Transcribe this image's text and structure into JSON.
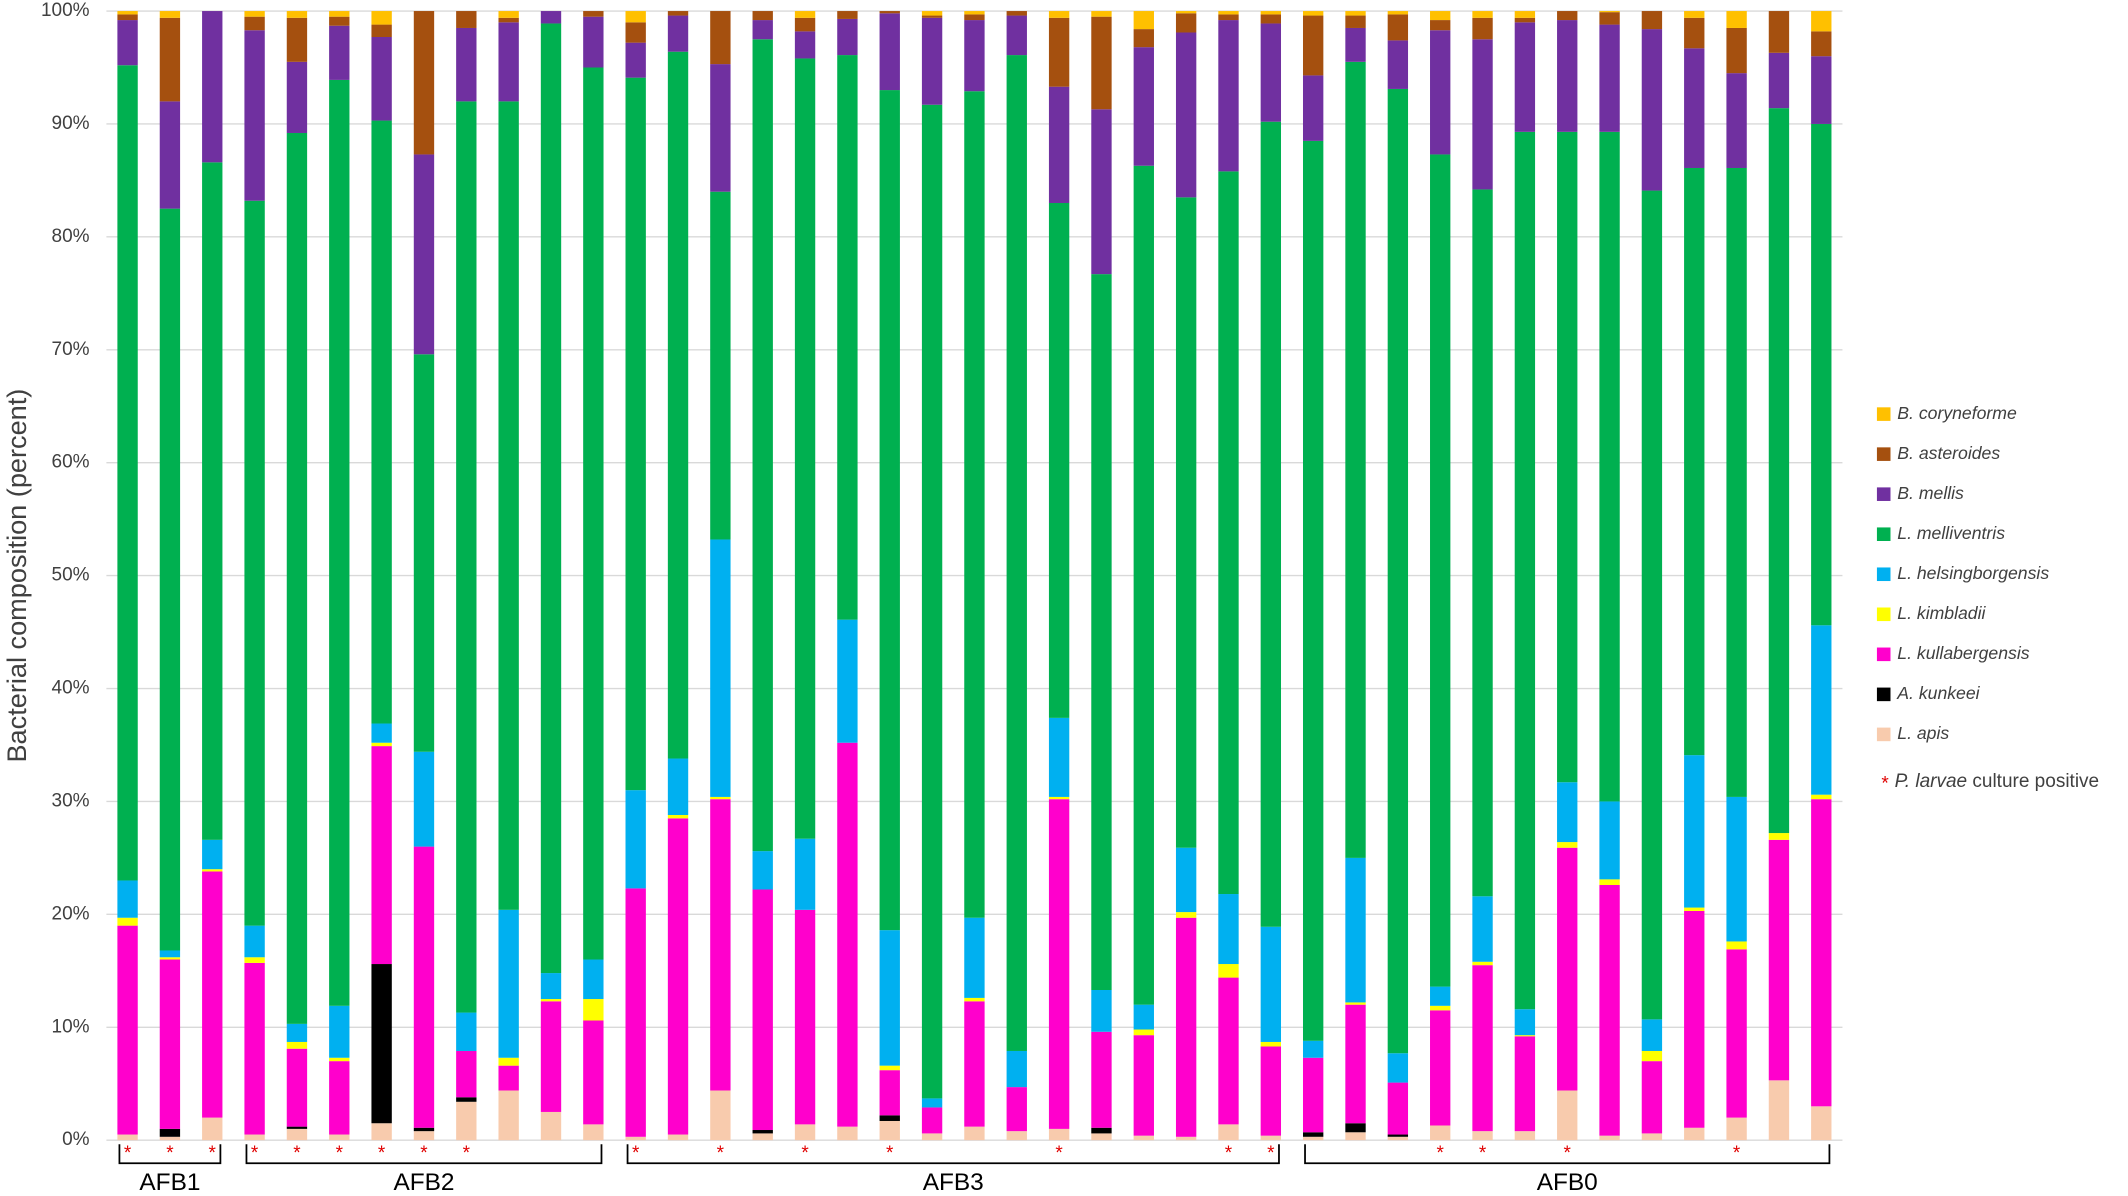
{
  "chart_data": {
    "type": "stacked_bar",
    "y_label": "Bacterial composition (percent)",
    "ylim": [
      0,
      100
    ],
    "yticks": [
      {
        "value": 0,
        "label": "0%"
      },
      {
        "value": 10,
        "label": "10%"
      },
      {
        "value": 20,
        "label": "20%"
      },
      {
        "value": 30,
        "label": "30%"
      },
      {
        "value": 40,
        "label": "40%"
      },
      {
        "value": 50,
        "label": "50%"
      },
      {
        "value": 60,
        "label": "60%"
      },
      {
        "value": 70,
        "label": "70%"
      },
      {
        "value": 80,
        "label": "80%"
      },
      {
        "value": 90,
        "label": "90%"
      },
      {
        "value": 100,
        "label": "100%"
      }
    ],
    "grid": true,
    "legend": "right",
    "categories": [
      null,
      null,
      null,
      null,
      null,
      null,
      null,
      null,
      null,
      null,
      null,
      null,
      null,
      null,
      null,
      null,
      null,
      null,
      null,
      null,
      null,
      null,
      null,
      null,
      null,
      null,
      null,
      null,
      null,
      null,
      null,
      null,
      null,
      null,
      null,
      null,
      null,
      null,
      null,
      null,
      null
    ],
    "groups": [
      {
        "label": "AFB1",
        "size": 3
      },
      {
        "label": "AFB2",
        "size": 9
      },
      {
        "label": "AFB3",
        "size": 16
      },
      {
        "label": "AFB0",
        "size": 13
      }
    ],
    "series": [
      {
        "name": "L. apis",
        "color": "#f8cbad",
        "values": [
          0.5,
          0.3,
          2,
          0.5,
          1,
          0.5,
          1.5,
          0.8,
          3.4,
          4.4,
          2.5,
          1.4,
          0.3,
          0.5,
          4.4,
          0.6,
          1.4,
          1.2,
          1.7,
          0.6,
          1.2,
          0.8,
          1,
          0.6,
          0.4,
          0.3,
          1.4,
          0.4,
          0.3,
          0.7,
          0.3,
          1.3,
          0.8,
          0.8,
          4.4,
          0.4,
          0.6,
          1.1,
          2,
          5.3,
          3
        ]
      },
      {
        "name": "A. kunkeei",
        "color": "#000000",
        "values": [
          0,
          0.7,
          0,
          0,
          0.2,
          0,
          14.1,
          0.3,
          0.4,
          0,
          0,
          0,
          0,
          0,
          0,
          0.3,
          0,
          0,
          0.5,
          0,
          0,
          0,
          0,
          0.5,
          0,
          0,
          0,
          0,
          0.4,
          0.8,
          0.2,
          0,
          0,
          0,
          0,
          0,
          0,
          0,
          0,
          0,
          0
        ]
      },
      {
        "name": "L. kullabergensis",
        "color": "#ff00cc",
        "values": [
          18.5,
          15,
          21.8,
          15.2,
          6.9,
          6.5,
          19.3,
          24.9,
          4.1,
          2.2,
          9.8,
          9.2,
          22,
          28,
          25.8,
          21.3,
          19,
          34,
          4,
          2.3,
          11.1,
          3.9,
          29.2,
          8.5,
          8.9,
          19.4,
          13,
          7.9,
          6.6,
          10.5,
          4.6,
          10.2,
          14.7,
          8.4,
          21.5,
          22.2,
          6.4,
          19.2,
          14.9,
          21.3,
          27.2
        ]
      },
      {
        "name": "L. kimbladii",
        "color": "#ffff00",
        "values": [
          0.7,
          0.2,
          0.2,
          0.5,
          0.6,
          0.3,
          0.3,
          0,
          0,
          0.7,
          0.2,
          1.9,
          0,
          0.3,
          0.2,
          0,
          0,
          0,
          0.4,
          0,
          0.3,
          0,
          0.2,
          0,
          0.5,
          0.5,
          1.2,
          0.4,
          0,
          0.2,
          0,
          0.4,
          0.3,
          0.1,
          0.5,
          0.5,
          0.9,
          0.3,
          0.7,
          0.6,
          0.4
        ]
      },
      {
        "name": "L. helsingborgensis",
        "color": "#00b0f0",
        "values": [
          3.3,
          0.6,
          2.6,
          2.8,
          1.6,
          4.6,
          1.7,
          8.4,
          3.4,
          13.1,
          2.3,
          3.5,
          8.7,
          5,
          22.8,
          3.4,
          6.3,
          10.9,
          12,
          0.8,
          7.1,
          3.2,
          7,
          3.7,
          2.2,
          5.7,
          6.2,
          10.2,
          1.5,
          12.8,
          2.6,
          1.7,
          5.8,
          2.3,
          5.3,
          6.9,
          2.8,
          13.5,
          12.8,
          0,
          15
        ]
      },
      {
        "name": "L. melliventris",
        "color": "#00b050",
        "values": [
          72.2,
          65.7,
          60,
          64.2,
          78.9,
          82,
          53.4,
          35.2,
          80.7,
          71.6,
          84.1,
          79,
          63.1,
          62.6,
          30.8,
          71.9,
          69.1,
          50,
          74.4,
          88,
          73.2,
          88.2,
          45.6,
          63.4,
          74.3,
          57.6,
          64,
          71.3,
          79.7,
          70.5,
          85.4,
          73.7,
          62.6,
          77.7,
          57.6,
          59.3,
          73.4,
          52,
          55.7,
          64.2,
          44.4
        ]
      },
      {
        "name": "B. mellis",
        "color": "#7030a0",
        "values": [
          4,
          9.5,
          13.4,
          15.1,
          6.3,
          4.8,
          7.4,
          17.7,
          6.5,
          7,
          1.1,
          4.5,
          3.1,
          3.2,
          11.3,
          1.7,
          2.4,
          3.2,
          6.8,
          7.7,
          6.3,
          3.5,
          10.3,
          14.6,
          10.5,
          14.6,
          13.4,
          8.7,
          5.8,
          3,
          4.3,
          11,
          13.3,
          9.7,
          9.9,
          9.5,
          14.3,
          10.6,
          8.4,
          4.9,
          6
        ]
      },
      {
        "name": "B. asteroides",
        "color": "#a5500f",
        "values": [
          0.5,
          7.4,
          0,
          1.2,
          3.9,
          0.8,
          1.1,
          12.7,
          1.5,
          0.4,
          0,
          0.5,
          1.8,
          0.4,
          4.7,
          0.8,
          1.2,
          0.7,
          0.2,
          0.2,
          0.5,
          0.4,
          6.1,
          8.2,
          1.6,
          1.7,
          0.5,
          0.8,
          5.3,
          1.1,
          2.3,
          0.9,
          1.9,
          0.4,
          0.8,
          1.1,
          1.6,
          2.7,
          4,
          3.7,
          2.2
        ]
      },
      {
        "name": "B. coryneforme",
        "color": "#ffc000",
        "values": [
          0.3,
          0.6,
          0,
          0.5,
          0.6,
          0.5,
          1.2,
          0,
          0,
          0.6,
          0,
          0,
          1,
          0,
          0,
          0,
          0.6,
          0,
          0,
          0.4,
          0.3,
          0,
          0.6,
          0.5,
          1.6,
          0.2,
          0.3,
          0.3,
          0.4,
          0.4,
          0.3,
          0.8,
          0.6,
          0.6,
          0,
          0.1,
          0,
          0.6,
          1.5,
          0,
          1.8
        ]
      }
    ],
    "annotation": {
      "symbol": "*",
      "color": "#e00000",
      "label_italic": "P. larvae",
      "label": "culture positive",
      "positive": [
        true,
        true,
        true,
        true,
        true,
        true,
        true,
        true,
        true,
        false,
        false,
        false,
        true,
        false,
        true,
        false,
        true,
        false,
        true,
        false,
        false,
        false,
        true,
        false,
        false,
        false,
        true,
        true,
        false,
        false,
        false,
        true,
        true,
        false,
        true,
        false,
        false,
        false,
        true,
        false,
        false
      ]
    }
  }
}
